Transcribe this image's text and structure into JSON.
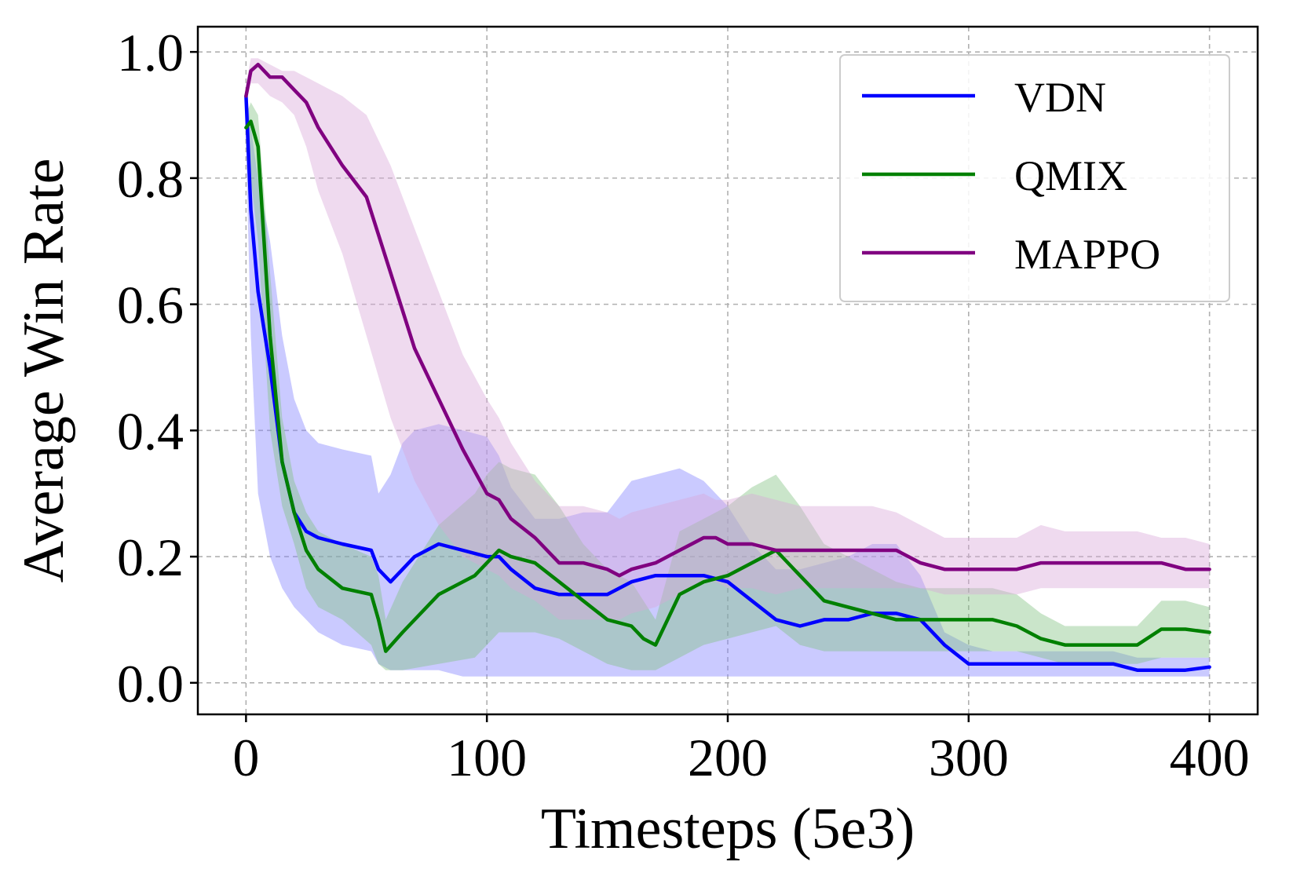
{
  "chart_data": {
    "type": "line",
    "title": "",
    "xlabel": "Timesteps (5e3)",
    "ylabel": "Average Win Rate",
    "xlim": [
      -20,
      420
    ],
    "ylim": [
      -0.05,
      1.04
    ],
    "xticks": [
      0,
      100,
      200,
      300,
      400
    ],
    "xtick_labels": [
      "0",
      "100",
      "200",
      "300",
      "400"
    ],
    "yticks": [
      0.0,
      0.2,
      0.4,
      0.6,
      0.8,
      1.0
    ],
    "ytick_labels": [
      "0.0",
      "0.2",
      "0.4",
      "0.6",
      "0.8",
      "1.0"
    ],
    "grid": true,
    "legend_position": "top-right",
    "series": [
      {
        "name": "VDN",
        "color": "#0000ff",
        "fill_color": "#8080ff",
        "x": [
          0,
          2,
          5,
          10,
          15,
          20,
          25,
          30,
          40,
          52,
          55,
          60,
          65,
          70,
          80,
          90,
          100,
          105,
          110,
          120,
          130,
          140,
          150,
          160,
          170,
          180,
          190,
          200,
          210,
          220,
          230,
          240,
          250,
          260,
          270,
          280,
          290,
          300,
          310,
          320,
          330,
          340,
          350,
          360,
          370,
          380,
          390,
          400
        ],
        "y": [
          0.93,
          0.75,
          0.62,
          0.5,
          0.35,
          0.27,
          0.24,
          0.23,
          0.22,
          0.21,
          0.18,
          0.16,
          0.18,
          0.2,
          0.22,
          0.21,
          0.2,
          0.2,
          0.18,
          0.15,
          0.14,
          0.14,
          0.14,
          0.16,
          0.17,
          0.17,
          0.17,
          0.16,
          0.13,
          0.1,
          0.09,
          0.1,
          0.1,
          0.11,
          0.11,
          0.1,
          0.06,
          0.03,
          0.03,
          0.03,
          0.03,
          0.03,
          0.03,
          0.03,
          0.02,
          0.02,
          0.02,
          0.025
        ],
        "lower": [
          0.85,
          0.55,
          0.3,
          0.2,
          0.15,
          0.12,
          0.1,
          0.08,
          0.06,
          0.05,
          0.03,
          0.02,
          0.02,
          0.02,
          0.02,
          0.01,
          0.01,
          0.01,
          0.01,
          0.01,
          0.01,
          0.01,
          0.01,
          0.01,
          0.01,
          0.01,
          0.01,
          0.01,
          0.01,
          0.01,
          0.01,
          0.01,
          0.01,
          0.01,
          0.01,
          0.01,
          0.01,
          0.01,
          0.01,
          0.01,
          0.01,
          0.01,
          0.01,
          0.01,
          0.01,
          0.01,
          0.01,
          0.01
        ],
        "upper": [
          0.95,
          0.88,
          0.8,
          0.7,
          0.55,
          0.45,
          0.4,
          0.38,
          0.37,
          0.36,
          0.3,
          0.33,
          0.38,
          0.4,
          0.41,
          0.4,
          0.39,
          0.36,
          0.31,
          0.26,
          0.26,
          0.27,
          0.27,
          0.32,
          0.33,
          0.34,
          0.32,
          0.28,
          0.22,
          0.18,
          0.18,
          0.19,
          0.2,
          0.22,
          0.22,
          0.17,
          0.08,
          0.06,
          0.05,
          0.05,
          0.05,
          0.05,
          0.05,
          0.05,
          0.04,
          0.04,
          0.04,
          0.04
        ]
      },
      {
        "name": "QMIX",
        "color": "#008000",
        "fill_color": "#80c080",
        "x": [
          0,
          2,
          5,
          10,
          15,
          20,
          25,
          30,
          40,
          52,
          55,
          58,
          65,
          80,
          95,
          100,
          105,
          110,
          120,
          130,
          140,
          150,
          160,
          165,
          170,
          180,
          190,
          200,
          210,
          220,
          230,
          240,
          250,
          260,
          270,
          280,
          290,
          300,
          310,
          320,
          330,
          340,
          350,
          360,
          370,
          380,
          390,
          400
        ],
        "y": [
          0.88,
          0.89,
          0.85,
          0.55,
          0.35,
          0.27,
          0.21,
          0.18,
          0.15,
          0.14,
          0.1,
          0.05,
          0.08,
          0.14,
          0.17,
          0.19,
          0.21,
          0.2,
          0.19,
          0.16,
          0.13,
          0.1,
          0.09,
          0.07,
          0.06,
          0.14,
          0.16,
          0.17,
          0.19,
          0.21,
          0.17,
          0.13,
          0.12,
          0.11,
          0.1,
          0.1,
          0.1,
          0.1,
          0.1,
          0.09,
          0.07,
          0.06,
          0.06,
          0.06,
          0.06,
          0.085,
          0.085,
          0.08
        ],
        "lower": [
          0.85,
          0.8,
          0.7,
          0.4,
          0.28,
          0.22,
          0.15,
          0.12,
          0.1,
          0.06,
          0.03,
          0.02,
          0.02,
          0.03,
          0.04,
          0.06,
          0.08,
          0.08,
          0.08,
          0.07,
          0.05,
          0.03,
          0.02,
          0.02,
          0.02,
          0.04,
          0.06,
          0.07,
          0.08,
          0.09,
          0.06,
          0.05,
          0.05,
          0.05,
          0.05,
          0.05,
          0.05,
          0.05,
          0.05,
          0.05,
          0.04,
          0.03,
          0.03,
          0.03,
          0.03,
          0.04,
          0.04,
          0.04
        ],
        "upper": [
          0.9,
          0.92,
          0.9,
          0.65,
          0.42,
          0.32,
          0.27,
          0.24,
          0.22,
          0.2,
          0.17,
          0.1,
          0.16,
          0.25,
          0.3,
          0.33,
          0.35,
          0.34,
          0.33,
          0.28,
          0.22,
          0.18,
          0.16,
          0.13,
          0.1,
          0.24,
          0.26,
          0.28,
          0.31,
          0.33,
          0.28,
          0.22,
          0.2,
          0.18,
          0.16,
          0.15,
          0.15,
          0.15,
          0.15,
          0.14,
          0.11,
          0.09,
          0.09,
          0.09,
          0.09,
          0.13,
          0.13,
          0.12
        ]
      },
      {
        "name": "MAPPO",
        "color": "#800080",
        "fill_color": "#d8a8d8",
        "x": [
          0,
          2,
          5,
          10,
          15,
          20,
          25,
          30,
          40,
          50,
          60,
          70,
          80,
          90,
          100,
          105,
          110,
          120,
          130,
          140,
          150,
          155,
          160,
          170,
          180,
          190,
          195,
          200,
          210,
          220,
          230,
          240,
          250,
          260,
          270,
          280,
          290,
          300,
          310,
          320,
          330,
          340,
          350,
          360,
          370,
          380,
          390,
          400
        ],
        "y": [
          0.93,
          0.97,
          0.98,
          0.96,
          0.96,
          0.94,
          0.92,
          0.88,
          0.82,
          0.77,
          0.65,
          0.53,
          0.45,
          0.37,
          0.3,
          0.29,
          0.26,
          0.23,
          0.19,
          0.19,
          0.18,
          0.17,
          0.18,
          0.19,
          0.21,
          0.23,
          0.23,
          0.22,
          0.22,
          0.21,
          0.21,
          0.21,
          0.21,
          0.21,
          0.21,
          0.19,
          0.18,
          0.18,
          0.18,
          0.18,
          0.19,
          0.19,
          0.19,
          0.19,
          0.19,
          0.19,
          0.18,
          0.18
        ],
        "lower": [
          0.92,
          0.95,
          0.95,
          0.93,
          0.92,
          0.9,
          0.85,
          0.78,
          0.68,
          0.55,
          0.42,
          0.32,
          0.25,
          0.2,
          0.18,
          0.17,
          0.15,
          0.13,
          0.1,
          0.1,
          0.1,
          0.1,
          0.11,
          0.12,
          0.14,
          0.16,
          0.16,
          0.15,
          0.15,
          0.14,
          0.15,
          0.15,
          0.15,
          0.15,
          0.15,
          0.15,
          0.14,
          0.14,
          0.14,
          0.14,
          0.15,
          0.15,
          0.15,
          0.15,
          0.15,
          0.15,
          0.15,
          0.15
        ],
        "upper": [
          0.95,
          0.99,
          0.99,
          0.98,
          0.97,
          0.97,
          0.96,
          0.95,
          0.93,
          0.9,
          0.82,
          0.72,
          0.62,
          0.52,
          0.45,
          0.42,
          0.38,
          0.32,
          0.28,
          0.28,
          0.27,
          0.26,
          0.27,
          0.28,
          0.29,
          0.3,
          0.29,
          0.29,
          0.3,
          0.29,
          0.28,
          0.28,
          0.28,
          0.28,
          0.27,
          0.25,
          0.23,
          0.23,
          0.23,
          0.23,
          0.25,
          0.24,
          0.24,
          0.24,
          0.24,
          0.23,
          0.23,
          0.22
        ]
      }
    ]
  }
}
